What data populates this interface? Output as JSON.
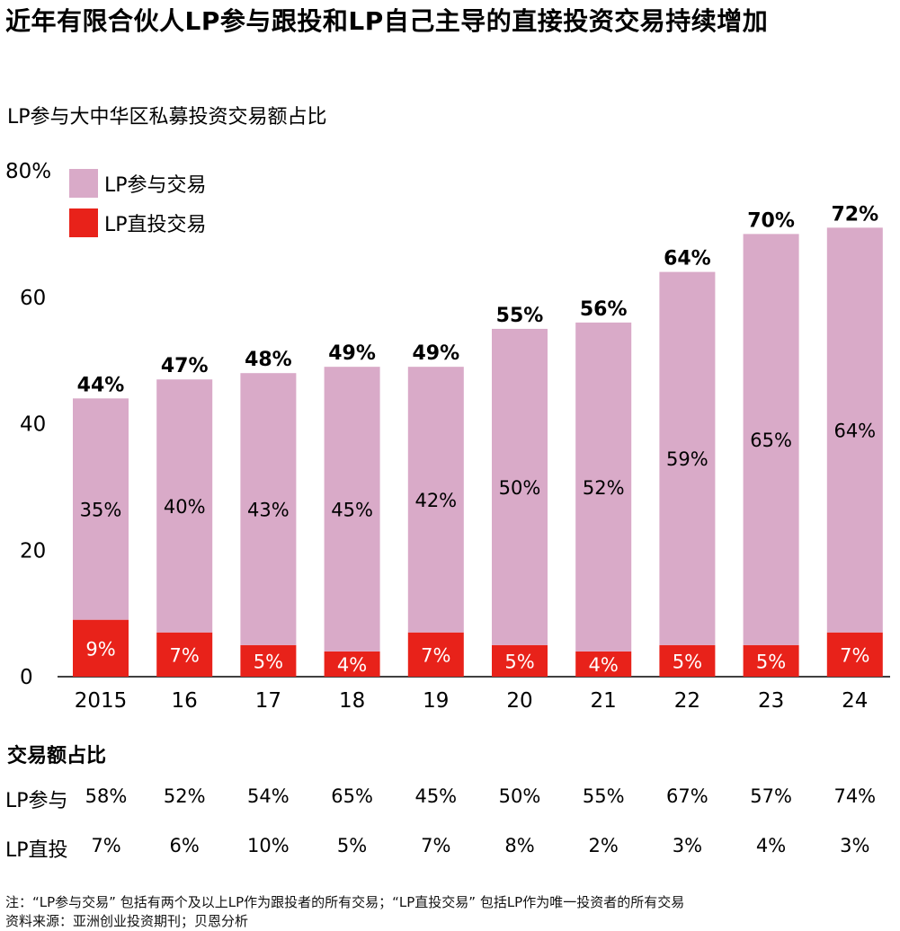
{
  "title": "近年有限合伙人LP参与跟投和LP自己主导的直接投资交易持续增加",
  "subtitle": "LP参与大中华区私募投资交易额占比",
  "colors": {
    "participate": "#d9aac8",
    "direct": "#e8221a"
  },
  "chart_data": {
    "type": "bar",
    "stacked": true,
    "categories": [
      "2015",
      "16",
      "17",
      "18",
      "19",
      "20",
      "21",
      "22",
      "23",
      "24"
    ],
    "series": [
      {
        "name": "LP直投交易",
        "values": [
          9,
          7,
          5,
          4,
          7,
          5,
          4,
          5,
          5,
          7
        ],
        "labels": [
          "9%",
          "7%",
          "5%",
          "4%",
          "7%",
          "5%",
          "4%",
          "5%",
          "5%",
          "7%"
        ]
      },
      {
        "name": "LP参与交易",
        "values": [
          35,
          40,
          43,
          45,
          42,
          50,
          52,
          59,
          65,
          64
        ],
        "labels": [
          "35%",
          "40%",
          "43%",
          "45%",
          "42%",
          "50%",
          "52%",
          "59%",
          "65%",
          "64%"
        ]
      }
    ],
    "totals": [
      "44%",
      "47%",
      "48%",
      "49%",
      "49%",
      "55%",
      "56%",
      "64%",
      "70%",
      "72%"
    ],
    "ylim": [
      0,
      80
    ],
    "yticks": [
      "0",
      "20",
      "40",
      "60",
      "80%"
    ],
    "legend": [
      {
        "name": "LP参与交易",
        "color": "#d9aac8"
      },
      {
        "name": "LP直投交易",
        "color": "#e8221a"
      }
    ],
    "legend_position": "top-left"
  },
  "table": {
    "title": "交易额占比",
    "rows": [
      {
        "label": "LP参与",
        "values": [
          "58%",
          "52%",
          "54%",
          "65%",
          "45%",
          "50%",
          "55%",
          "67%",
          "57%",
          "74%"
        ]
      },
      {
        "label": "LP直投",
        "values": [
          "7%",
          "6%",
          "10%",
          "5%",
          "7%",
          "8%",
          "2%",
          "3%",
          "4%",
          "3%"
        ]
      }
    ]
  },
  "notes": {
    "note": "注：“LP参与交易” 包括有两个及以上LP作为跟投者的所有交易；“LP直投交易” 包括LP作为唯一投资者的所有交易",
    "source": "资料来源：亚洲创业投资期刊；贝恩分析"
  }
}
